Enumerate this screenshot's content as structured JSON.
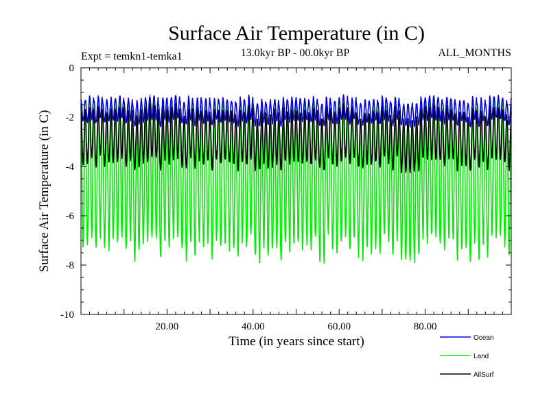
{
  "chart_data": {
    "type": "line",
    "title": "Surface Air Temperature (in C)",
    "subtitle": "13.0kyr BP - 00.0kyr BP",
    "experiment_label": "Expt = temkn1-temka1",
    "months_label": "ALL_MONTHS",
    "xlabel": "Time (in years since start)",
    "ylabel": "Surface Air Temperature (in C)",
    "xlim": [
      0,
      100
    ],
    "ylim": [
      -10,
      0
    ],
    "x_ticks": [
      20,
      40,
      60,
      80
    ],
    "x_tick_labels": [
      "20.00",
      "40.00",
      "60.00",
      "80.00"
    ],
    "y_ticks": [
      0,
      -2,
      -4,
      -6,
      -8,
      -10
    ],
    "y_tick_labels": [
      "0",
      "-2",
      "-4",
      "-6",
      "-8",
      "-10"
    ],
    "grid": false,
    "legend_position": "bottom-right",
    "series": [
      {
        "name": "Ocean",
        "color": "#0000dd",
        "seasonal_min": -2.2,
        "seasonal_max": -1.3
      },
      {
        "name": "Land",
        "color": "#00ee00",
        "seasonal_min": -7.3,
        "seasonal_max": -1.7
      },
      {
        "name": "AllSurf",
        "color": "#000000",
        "seasonal_min": -3.9,
        "seasonal_max": -1.8
      }
    ]
  }
}
